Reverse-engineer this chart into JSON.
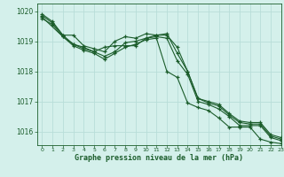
{
  "background_color": "#d4f0eb",
  "grid_color": "#b8ddd8",
  "line_color": "#1a5c2a",
  "title": "Graphe pression niveau de la mer (hPa)",
  "xlim": [
    -0.5,
    23
  ],
  "ylim": [
    1015.55,
    1020.25
  ],
  "yticks": [
    1016,
    1017,
    1018,
    1019,
    1020
  ],
  "xticks": [
    0,
    1,
    2,
    3,
    4,
    5,
    6,
    7,
    8,
    9,
    10,
    11,
    12,
    13,
    14,
    15,
    16,
    17,
    18,
    19,
    20,
    21,
    22,
    23
  ],
  "series": [
    {
      "x": [
        0,
        1,
        2,
        3,
        4,
        5,
        6,
        7,
        8,
        9,
        10,
        11,
        12,
        13,
        14,
        15,
        16,
        17,
        18,
        19,
        20,
        21,
        22,
        23
      ],
      "y": [
        1019.9,
        1019.65,
        1019.2,
        1019.2,
        1018.85,
        1018.75,
        1018.65,
        1019.0,
        1019.15,
        1019.1,
        1019.25,
        1019.2,
        1019.25,
        1018.6,
        1018.0,
        1017.1,
        1017.0,
        1016.9,
        1016.6,
        1016.35,
        1016.3,
        1016.3,
        1015.9,
        1015.8
      ]
    },
    {
      "x": [
        0,
        1,
        2,
        3,
        4,
        5,
        6,
        7,
        8,
        9,
        10,
        11,
        12,
        13,
        14,
        15,
        16,
        17,
        18,
        19,
        20,
        21,
        22,
        23
      ],
      "y": [
        1019.85,
        1019.6,
        1019.2,
        1018.9,
        1018.75,
        1018.65,
        1018.8,
        1018.85,
        1018.85,
        1018.85,
        1019.1,
        1019.2,
        1019.2,
        1018.8,
        1018.0,
        1017.1,
        1016.95,
        1016.85,
        1016.55,
        1016.3,
        1016.25,
        1016.25,
        1015.85,
        1015.75
      ]
    },
    {
      "x": [
        0,
        2,
        3,
        4,
        5,
        6,
        7,
        8,
        9,
        10,
        11,
        12,
        13,
        14,
        15,
        16,
        17,
        18,
        19,
        20,
        21,
        22,
        23
      ],
      "y": [
        1019.8,
        1019.15,
        1018.9,
        1018.8,
        1018.65,
        1018.5,
        1018.65,
        1018.95,
        1019.0,
        1019.1,
        1019.15,
        1019.1,
        1018.35,
        1017.9,
        1017.0,
        1016.9,
        1016.75,
        1016.5,
        1016.2,
        1016.2,
        1016.2,
        1015.8,
        1015.7
      ]
    },
    {
      "x": [
        0,
        1,
        2,
        3,
        4,
        5,
        6,
        7,
        8,
        9,
        10,
        11,
        12,
        13,
        14,
        15,
        16,
        17,
        18,
        19,
        20,
        21,
        22,
        23
      ],
      "y": [
        1019.75,
        1019.55,
        1019.15,
        1018.85,
        1018.7,
        1018.6,
        1018.4,
        1018.6,
        1018.8,
        1018.9,
        1019.05,
        1019.1,
        1018.0,
        1017.8,
        1016.95,
        1016.8,
        1016.7,
        1016.45,
        1016.15,
        1016.15,
        1016.15,
        1015.75,
        1015.65,
        1015.6
      ]
    }
  ]
}
